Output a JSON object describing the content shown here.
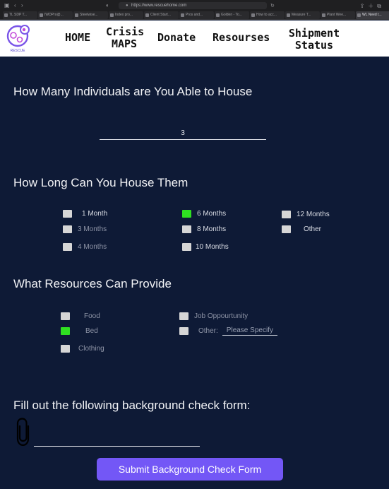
{
  "browser": {
    "url": "https://www.rescuehome.com",
    "tabs": [
      "TL SDP T...",
      "IWDPro@...",
      "Steelwise...",
      "Index pro...",
      "Client Start...",
      "Pros and...",
      "Golden - To...",
      "How to acc...",
      "Measure T...",
      "Plant Wee...",
      "WL Need t..."
    ]
  },
  "logo": {
    "text": "RESCUE"
  },
  "nav": {
    "home": "HOME",
    "crisis_line1": "Crisis",
    "crisis_line2": "MAPS",
    "donate": "Donate",
    "resources": "Resourses",
    "shipment_line1": "Shipment",
    "shipment_line2": "Status"
  },
  "house_count": {
    "question": "How Many Individuals are You Able to House",
    "value": "3"
  },
  "duration": {
    "question": "How Long Can You House Them",
    "options": [
      {
        "label": "1 Month",
        "checked": false,
        "dim": false
      },
      {
        "label": "3 Months",
        "checked": false,
        "dim": true
      },
      {
        "label": "4 Months",
        "checked": false,
        "dim": true
      },
      {
        "label": "6 Months",
        "checked": true,
        "dim": false
      },
      {
        "label": "8 Months",
        "checked": false,
        "dim": false
      },
      {
        "label": "10 Months",
        "checked": false,
        "dim": false
      },
      {
        "label": "12 Months",
        "checked": false,
        "dim": false
      },
      {
        "label": "Other",
        "checked": false,
        "dim": false
      }
    ]
  },
  "resources": {
    "question": "What Resources Can Provide",
    "options": [
      {
        "label": "Food",
        "checked": false,
        "dim": true
      },
      {
        "label": "Bed",
        "checked": true,
        "dim": false
      },
      {
        "label": "Clothing",
        "checked": false,
        "dim": true
      },
      {
        "label": "Job Oppourtunity",
        "checked": false,
        "dim": true
      },
      {
        "label": "Other:",
        "checked": false,
        "dim": true
      }
    ],
    "other_placeholder": "Please Specify"
  },
  "background": {
    "prompt": "Fill out the following background check form:",
    "attach_icon": "paperclip-icon",
    "submit_label": "Submit Background Check Form"
  },
  "colors": {
    "page_bg": "#0e1a36",
    "checked": "#2fe021",
    "unchecked": "#d6d6d6",
    "submit": "#7357f6"
  }
}
